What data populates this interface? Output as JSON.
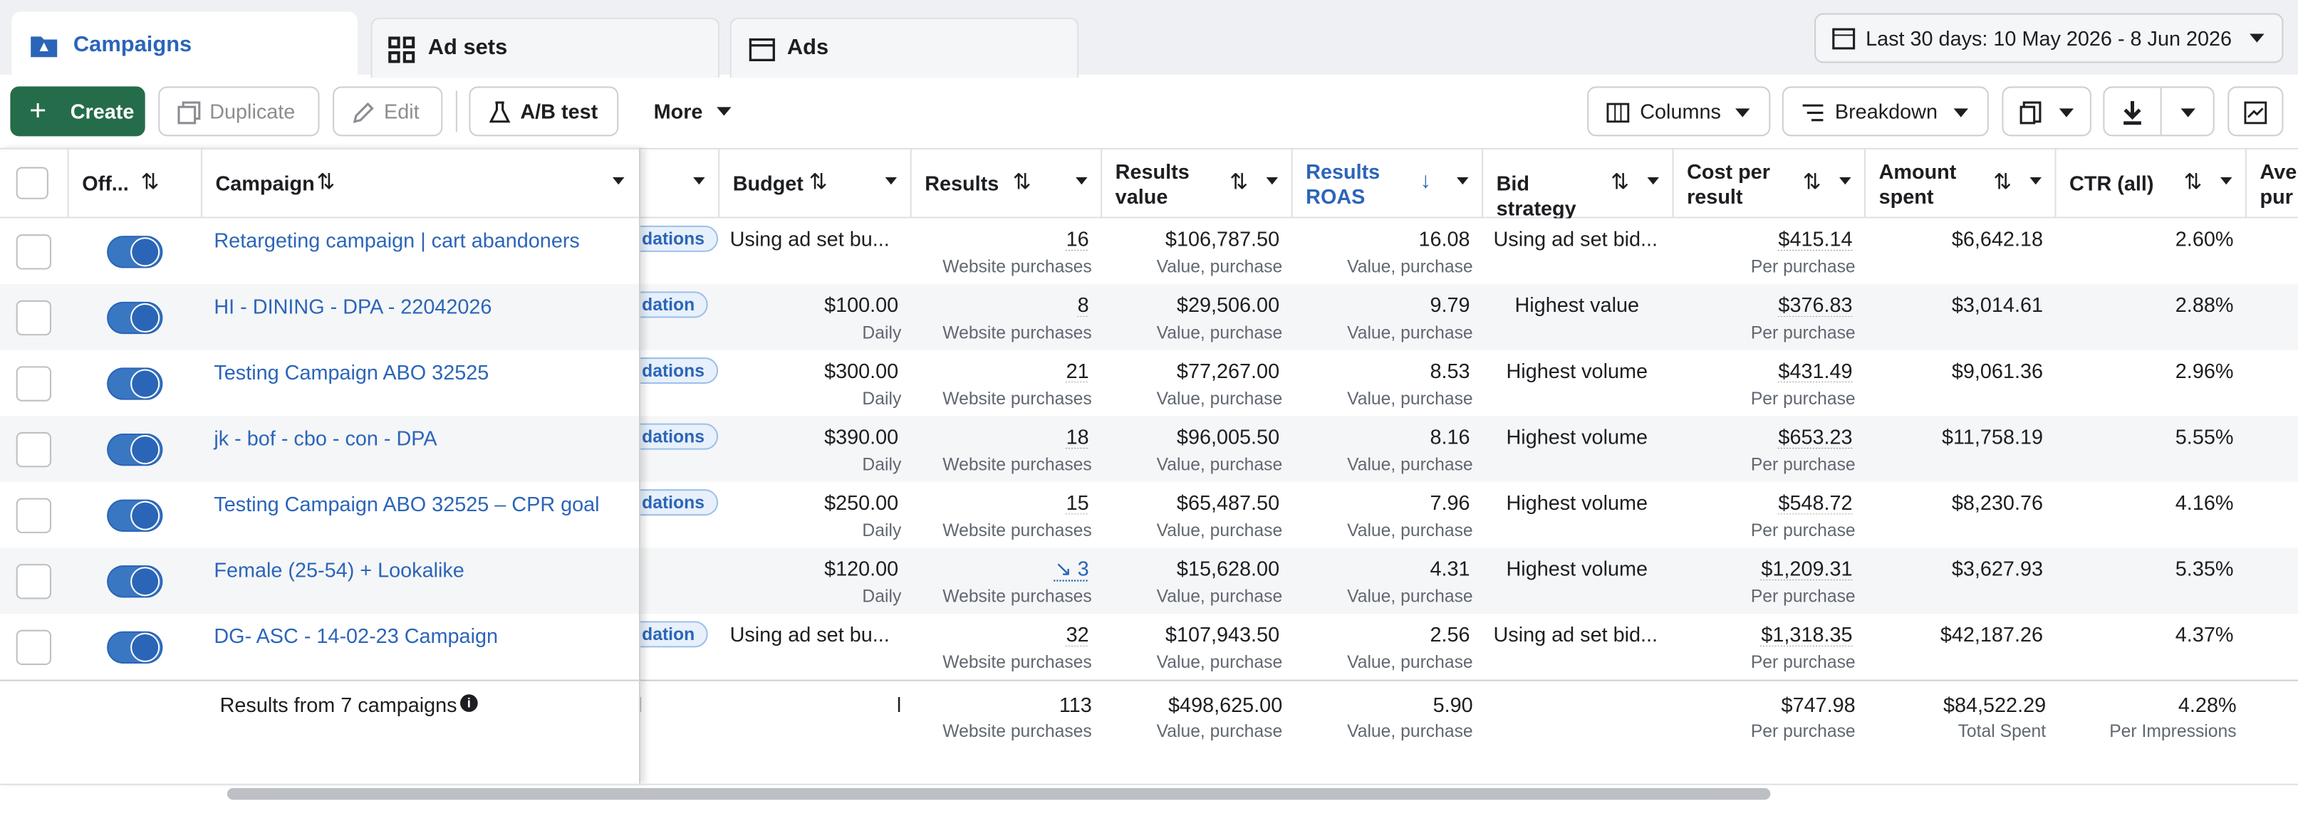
{
  "tabs": [
    "Campaigns",
    "Ad sets",
    "Ads"
  ],
  "date_range": "Last 30 days: 10 May 2026 - 8 Jun 2026",
  "toolbar": {
    "create": "Create",
    "duplicate": "Duplicate",
    "edit": "Edit",
    "ab_test": "A/B test",
    "more": "More",
    "columns": "Columns",
    "breakdown": "Breakdown"
  },
  "table": {
    "headers": [
      "Off...",
      "Campaign",
      "Budget",
      "Results",
      "Results value",
      "Results ROAS",
      "Bid strategy",
      "Cost per result",
      "Amount spent",
      "CTR (all)",
      "Ave pur"
    ],
    "rows": [
      {
        "name": "Retargeting campaign | cart abandoners",
        "delivery": "dations",
        "budget": "Using ad set bu...",
        "results": "16",
        "results_sub": "Website purchases",
        "value": "$106,787.50",
        "value_sub": "Value, purchase",
        "roas": "16.08",
        "roas_sub": "Value, purchase",
        "bid": "Using ad set bid...",
        "cost": "$415.14",
        "cost_sub": "Per purchase",
        "spent": "$6,642.18",
        "ctr": "2.60%"
      },
      {
        "name": "HI - DINING - DPA - 22042026",
        "delivery": "dation",
        "budget": "$100.00",
        "budget_sub": "Daily",
        "results": "8",
        "results_sub": "Website purchases",
        "value": "$29,506.00",
        "value_sub": "Value, purchase",
        "roas": "9.79",
        "roas_sub": "Value, purchase",
        "bid": "Highest value",
        "cost": "$376.83",
        "cost_sub": "Per purchase",
        "spent": "$3,014.61",
        "ctr": "2.88%"
      },
      {
        "name": "Testing Campaign ABO 32525",
        "delivery": "dations",
        "budget": "$300.00",
        "budget_sub": "Daily",
        "results": "21",
        "results_sub": "Website purchases",
        "value": "$77,267.00",
        "value_sub": "Value, purchase",
        "roas": "8.53",
        "roas_sub": "Value, purchase",
        "bid": "Highest volume",
        "cost": "$431.49",
        "cost_sub": "Per purchase",
        "spent": "$9,061.36",
        "ctr": "2.96%"
      },
      {
        "name": "jk - bof - cbo - con - DPA",
        "delivery": "dations",
        "budget": "$390.00",
        "budget_sub": "Daily",
        "results": "18",
        "results_sub": "Website purchases",
        "value": "$96,005.50",
        "value_sub": "Value, purchase",
        "roas": "8.16",
        "roas_sub": "Value, purchase",
        "bid": "Highest volume",
        "cost": "$653.23",
        "cost_sub": "Per purchase",
        "spent": "$11,758.19",
        "ctr": "5.55%"
      },
      {
        "name": "Testing Campaign ABO 32525 – CPR goal",
        "delivery": "dations",
        "budget": "$250.00",
        "budget_sub": "Daily",
        "results": "15",
        "results_sub": "Website purchases",
        "value": "$65,487.50",
        "value_sub": "Value, purchase",
        "roas": "7.96",
        "roas_sub": "Value, purchase",
        "bid": "Highest volume",
        "cost": "$548.72",
        "cost_sub": "Per purchase",
        "spent": "$8,230.76",
        "ctr": "4.16%"
      },
      {
        "name": "Female (25-54) + Lookalike",
        "budget": "$120.00",
        "budget_sub": "Daily",
        "results": "3",
        "results_sub": "Website purchases",
        "value": "$15,628.00",
        "value_sub": "Value, purchase",
        "roas": "4.31",
        "roas_sub": "Value, purchase",
        "bid": "Highest volume",
        "cost": "$1,209.31",
        "cost_sub": "Per purchase",
        "spent": "$3,627.93",
        "ctr": "5.35%"
      },
      {
        "name": "DG- ASC - 14-02-23 Campaign",
        "delivery": "dation",
        "budget": "Using ad set bu...",
        "results": "32",
        "results_sub": "Website purchases",
        "value": "$107,943.50",
        "value_sub": "Value, purchase",
        "roas": "2.56",
        "roas_sub": "Value, purchase",
        "bid": "Using ad set bid...",
        "cost": "$1,318.35",
        "cost_sub": "Per purchase",
        "spent": "$42,187.26",
        "ctr": "4.37%"
      }
    ],
    "footer": {
      "label": "Results from 7 campaigns",
      "budget": "l",
      "results": "113",
      "results_sub": "Website purchases",
      "value": "$498,625.00",
      "value_sub": "Value, purchase",
      "roas": "5.90",
      "roas_sub": "Value, purchase",
      "cost": "$747.98",
      "cost_sub": "Per purchase",
      "spent": "$84,522.29",
      "spent_sub": "Total Spent",
      "ctr": "4.28%",
      "ctr_sub": "Per Impressions"
    }
  }
}
